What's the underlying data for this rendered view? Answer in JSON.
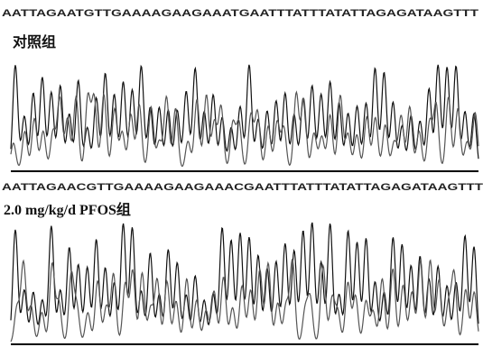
{
  "panels": [
    {
      "sequence": "AATTAGAATGTTGAAAAGAAGAAATGAATTTATTTATATTAGAGATAAGTTT",
      "label": "对照组"
    },
    {
      "sequence": "AATTAGAACGTTGAAAAGAAGAAACGAATTTATTTATATTAGAGATAAGTTT",
      "label": "2.0 mg/kg/d PFOS组"
    }
  ]
}
